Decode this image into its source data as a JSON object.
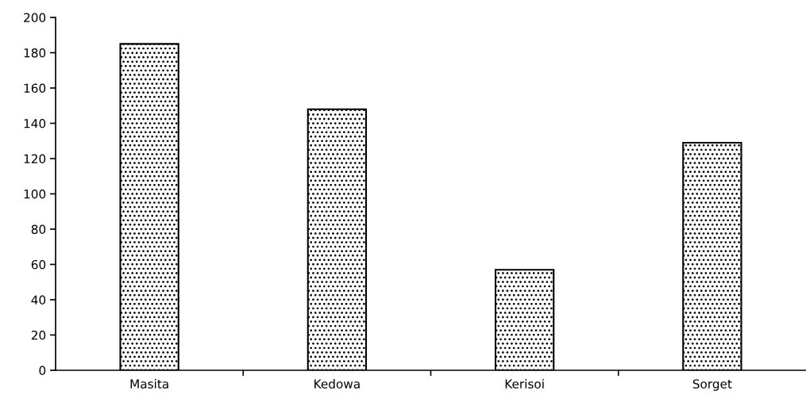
{
  "chart_data": {
    "type": "bar",
    "categories": [
      "Masita",
      "Kedowa",
      "Kerisoi",
      "Sorget"
    ],
    "values": [
      185,
      148,
      57,
      129
    ],
    "color": "#000000",
    "ylim": [
      0,
      200
    ],
    "yticks": [
      0,
      20,
      40,
      60,
      80,
      100,
      120,
      140,
      160,
      180,
      200
    ],
    "grid": false,
    "legend": false
  }
}
